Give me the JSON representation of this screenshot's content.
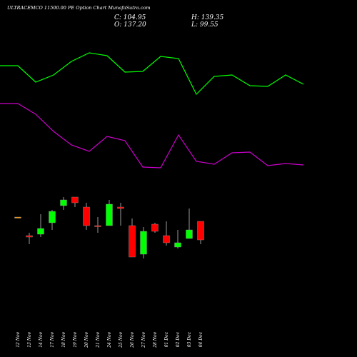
{
  "header": {
    "title": "ULTRACEMCO 11500.00  PE Option  Chart MunafaSutra.com",
    "close_label": "C:",
    "close": "104.95",
    "open_label": "O:",
    "open": "137.20",
    "high_label": "H:",
    "high": "139.35",
    "low_label": "L:",
    "low": "99.55"
  },
  "colors": {
    "background": "#000000",
    "upper_line": "#00ff00",
    "lower_line": "#cc00cc",
    "bull": "#00ff00",
    "bear": "#ff0000",
    "doji": "#ff9900",
    "wick": "#9a9a9a",
    "text": "#ffffff"
  },
  "chart_data": {
    "type": "candlestick",
    "categories": [
      "12 Nov",
      "13 Nov",
      "14 Nov",
      "17 Nov",
      "18 Nov",
      "19 Nov",
      "20 Nov",
      "21 Nov",
      "24 Nov",
      "25 Nov",
      "26 Nov",
      "27 Nov",
      "28 Nov",
      "01 Dec",
      "02 Dec",
      "03 Dec",
      "04 Dec"
    ],
    "ohlc": [
      {
        "o": 134.0,
        "h": 134.0,
        "l": 134.0,
        "c": 134.0
      },
      {
        "o": 127.5,
        "h": 128.5,
        "l": 124.5,
        "c": 127.0
      },
      {
        "o": 128.0,
        "h": 135.0,
        "l": 127.0,
        "c": 130.0
      },
      {
        "o": 132.0,
        "h": 136.5,
        "l": 129.5,
        "c": 136.0
      },
      {
        "o": 138.0,
        "h": 141.0,
        "l": 136.5,
        "c": 140.0
      },
      {
        "o": 141.0,
        "h": 141.0,
        "l": 137.5,
        "c": 139.0
      },
      {
        "o": 137.5,
        "h": 139.0,
        "l": 129.5,
        "c": 131.0
      },
      {
        "o": 131.0,
        "h": 134.0,
        "l": 128.5,
        "c": 131.0
      },
      {
        "o": 131.0,
        "h": 140.0,
        "l": 131.0,
        "c": 138.5
      },
      {
        "o": 137.5,
        "h": 139.0,
        "l": 131.0,
        "c": 137.0
      },
      {
        "o": 131.0,
        "h": 133.5,
        "l": 120.0,
        "c": 120.0
      },
      {
        "o": 121.0,
        "h": 130.5,
        "l": 119.5,
        "c": 129.0
      },
      {
        "o": 131.5,
        "h": 132.0,
        "l": 128.5,
        "c": 129.0
      },
      {
        "o": 127.5,
        "h": 132.5,
        "l": 124.0,
        "c": 125.0
      },
      {
        "o": 123.5,
        "h": 129.5,
        "l": 123.0,
        "c": 125.0
      },
      {
        "o": 126.5,
        "h": 137.0,
        "l": 126.5,
        "c": 129.5
      },
      {
        "o": 132.5,
        "h": 132.5,
        "l": 124.5,
        "c": 126.0
      }
    ],
    "series_upper": [
      92,
      92,
      115,
      105,
      86,
      74,
      78,
      101,
      100,
      79,
      82,
      132,
      107,
      105,
      120,
      121,
      105,
      118
    ],
    "series_lower": [
      145,
      145,
      160,
      184,
      203,
      212,
      191,
      197,
      234,
      235,
      189,
      226,
      230,
      214,
      213,
      232,
      229,
      231
    ],
    "price_scale": {
      "min": 115,
      "max": 145
    },
    "xlabel": "",
    "ylabel": ""
  }
}
